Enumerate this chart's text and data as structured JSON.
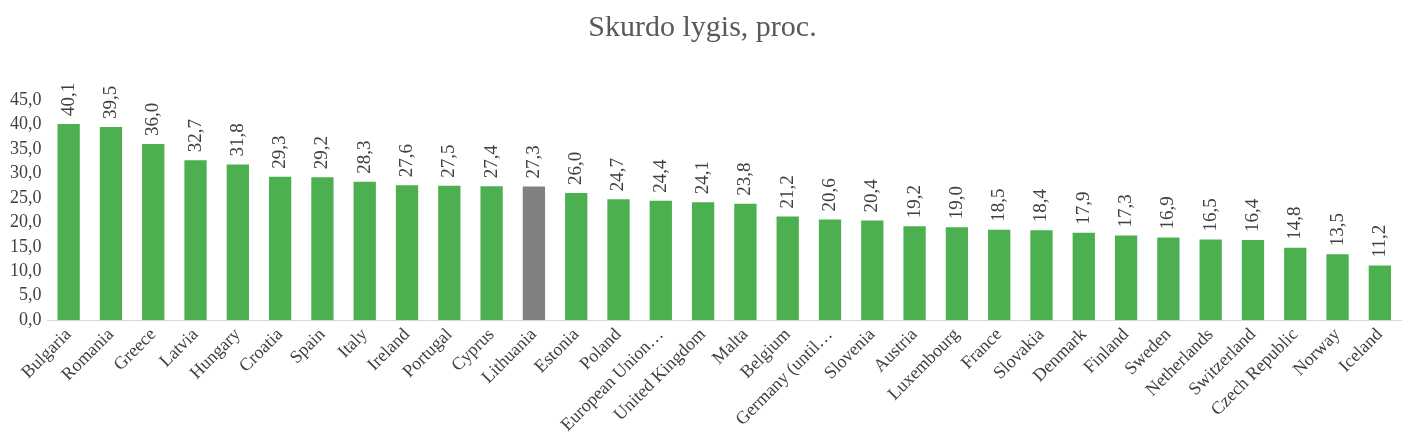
{
  "chart_data": {
    "type": "bar",
    "title": "Skurdo lygis, proc.",
    "categories": [
      "Bulgaria",
      "Romania",
      "Greece",
      "Latvia",
      "Hungary",
      "Croatia",
      "Spain",
      "Italy",
      "Ireland",
      "Portugal",
      "Cyprus",
      "Lithuania",
      "Estonia",
      "Poland",
      "European Union…",
      "United Kingdom",
      "Malta",
      "Belgium",
      "Germany (until…",
      "Slovenia",
      "Austria",
      "Luxembourg",
      "France",
      "Slovakia",
      "Denmark",
      "Finland",
      "Sweden",
      "Netherlands",
      "Switzerland",
      "Czech Republic",
      "Norway",
      "Iceland"
    ],
    "values": [
      40.1,
      39.5,
      36.0,
      32.7,
      31.8,
      29.3,
      29.2,
      28.3,
      27.6,
      27.5,
      27.4,
      27.3,
      26.0,
      24.7,
      24.4,
      24.1,
      23.8,
      21.2,
      20.6,
      20.4,
      19.2,
      19.0,
      18.5,
      18.4,
      17.9,
      17.3,
      16.9,
      16.5,
      16.4,
      14.8,
      13.5,
      11.2
    ],
    "value_labels": [
      "40,1",
      "39,5",
      "36,0",
      "32,7",
      "31,8",
      "29,3",
      "29,2",
      "28,3",
      "27,6",
      "27,5",
      "27,4",
      "27,3",
      "26,0",
      "24,7",
      "24,4",
      "24,1",
      "23,8",
      "21,2",
      "20,6",
      "20,4",
      "19,2",
      "19,0",
      "18,5",
      "18,4",
      "17,9",
      "17,3",
      "16,9",
      "16,5",
      "16,4",
      "14,8",
      "13,5",
      "11,2"
    ],
    "colors": [
      "#4cb050",
      "#4cb050",
      "#4cb050",
      "#4cb050",
      "#4cb050",
      "#4cb050",
      "#4cb050",
      "#4cb050",
      "#4cb050",
      "#4cb050",
      "#4cb050",
      "#808080",
      "#4cb050",
      "#4cb050",
      "#4cb050",
      "#4cb050",
      "#4cb050",
      "#4cb050",
      "#4cb050",
      "#4cb050",
      "#4cb050",
      "#4cb050",
      "#4cb050",
      "#4cb050",
      "#4cb050",
      "#4cb050",
      "#4cb050",
      "#4cb050",
      "#4cb050",
      "#4cb050",
      "#4cb050",
      "#4cb050"
    ],
    "ylim": [
      0,
      45
    ],
    "yticks": [
      {
        "value": 0,
        "label": "0,0"
      },
      {
        "value": 5,
        "label": "5,0"
      },
      {
        "value": 10,
        "label": "10,0"
      },
      {
        "value": 15,
        "label": "15,0"
      },
      {
        "value": 20,
        "label": "20,0"
      },
      {
        "value": 25,
        "label": "25,0"
      },
      {
        "value": 30,
        "label": "30,0"
      },
      {
        "value": 35,
        "label": "35,0"
      },
      {
        "value": 40,
        "label": "40,0"
      },
      {
        "value": 45,
        "label": "45,0"
      }
    ],
    "grid": false,
    "legend": false
  }
}
